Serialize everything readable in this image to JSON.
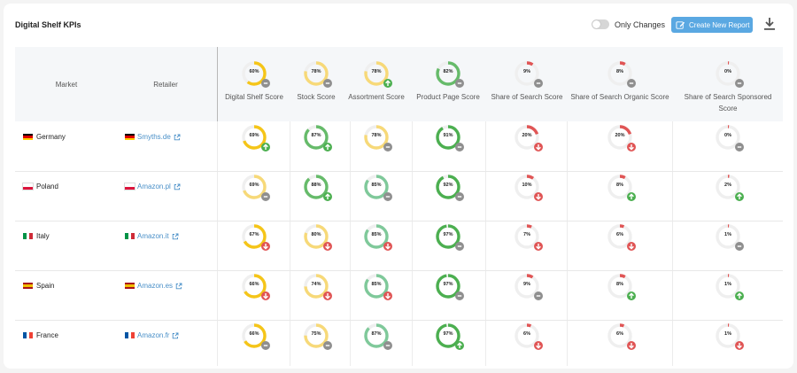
{
  "header": {
    "title": "Digital Shelf KPIs",
    "toggle_label": "Only Changes",
    "create_button_label": "Create New Report"
  },
  "colors": {
    "yellow": "#f5c518",
    "green": "#66bb6a",
    "lightgreen": "#7fc99a",
    "red": "#e05555",
    "grey": "#8f8f8f",
    "accent": "#5aa8e2"
  },
  "columns": {
    "market": "Market",
    "retailer": "Retailer",
    "kpis": [
      {
        "label": "Digital Shelf Score",
        "overall": 60,
        "color": "yellow",
        "trend": "same"
      },
      {
        "label": "Stock Score",
        "overall": 78,
        "color": "lightyellow",
        "trend": "same"
      },
      {
        "label": "Assortment Score",
        "overall": 78,
        "color": "lightyellow",
        "trend": "up"
      },
      {
        "label": "Product Page Score",
        "overall": 82,
        "color": "green",
        "trend": "same"
      },
      {
        "label": "Share of Search Score",
        "overall": 9,
        "color": "red",
        "trend": "same"
      },
      {
        "label": "Share of Search Organic Score",
        "overall": 8,
        "color": "red",
        "trend": "same"
      },
      {
        "label": "Share of Search Sponsored Score",
        "overall": 0,
        "color": "red",
        "trend": "same"
      }
    ]
  },
  "rows": [
    {
      "market": "Germany",
      "flag": "de",
      "retailer": "Smyths.de",
      "cells": [
        [
          69,
          "yellow",
          "up"
        ],
        [
          87,
          "green",
          "up"
        ],
        [
          78,
          "lightyellow",
          "same"
        ],
        [
          91,
          "darkgreen",
          "same"
        ],
        [
          20,
          "red",
          "down"
        ],
        [
          20,
          "red",
          "down"
        ],
        [
          0,
          "red",
          "same"
        ]
      ]
    },
    {
      "market": "Poland",
      "flag": "pl",
      "retailer": "Amazon.pl",
      "cells": [
        [
          69,
          "lightyellow",
          "same"
        ],
        [
          88,
          "green",
          "up"
        ],
        [
          85,
          "lightgreen",
          "same"
        ],
        [
          92,
          "darkgreen",
          "same"
        ],
        [
          10,
          "red",
          "down"
        ],
        [
          8,
          "red",
          "up"
        ],
        [
          2,
          "red",
          "up"
        ]
      ]
    },
    {
      "market": "Italy",
      "flag": "it",
      "retailer": "Amazon.it",
      "cells": [
        [
          67,
          "yellow",
          "down"
        ],
        [
          80,
          "lightyellow",
          "down"
        ],
        [
          85,
          "lightgreen",
          "down"
        ],
        [
          97,
          "darkgreen",
          "same"
        ],
        [
          7,
          "red",
          "down"
        ],
        [
          6,
          "red",
          "down"
        ],
        [
          1,
          "red",
          "same"
        ]
      ]
    },
    {
      "market": "Spain",
      "flag": "es",
      "retailer": "Amazon.es",
      "cells": [
        [
          66,
          "yellow",
          "down"
        ],
        [
          74,
          "lightyellow",
          "down"
        ],
        [
          85,
          "lightgreen",
          "down"
        ],
        [
          97,
          "darkgreen",
          "same"
        ],
        [
          9,
          "red",
          "same"
        ],
        [
          8,
          "red",
          "up"
        ],
        [
          1,
          "red",
          "up"
        ]
      ]
    },
    {
      "market": "France",
      "flag": "fr",
      "retailer": "Amazon.fr",
      "cells": [
        [
          66,
          "yellow",
          "same"
        ],
        [
          75,
          "lightyellow",
          "same"
        ],
        [
          87,
          "lightgreen",
          "same"
        ],
        [
          97,
          "darkgreen",
          "up"
        ],
        [
          6,
          "red",
          "down"
        ],
        [
          6,
          "red",
          "down"
        ],
        [
          1,
          "red",
          "down"
        ]
      ]
    }
  ]
}
